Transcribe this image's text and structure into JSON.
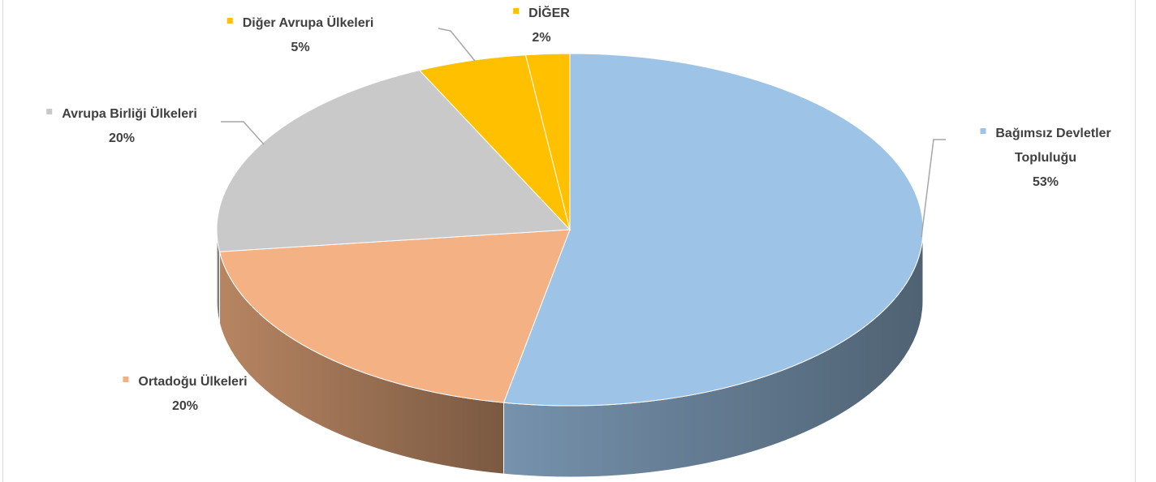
{
  "chart_data": {
    "type": "pie3d",
    "categories": [
      "Bağımsız Devletler Topluluğu",
      "Ortadoğu Ülkeleri",
      "Avrupa Birliği Ülkeleri",
      "Diğer Avrupa Ülkeleri",
      "DİĞER"
    ],
    "values": [
      53,
      20,
      20,
      5,
      2
    ],
    "value_labels": [
      "53%",
      "20%",
      "20%",
      "5%",
      "2%"
    ],
    "colors": [
      "#9dc3e6",
      "#f4b183",
      "#c9c9c9",
      "#ffc000",
      "#ffc000"
    ]
  }
}
